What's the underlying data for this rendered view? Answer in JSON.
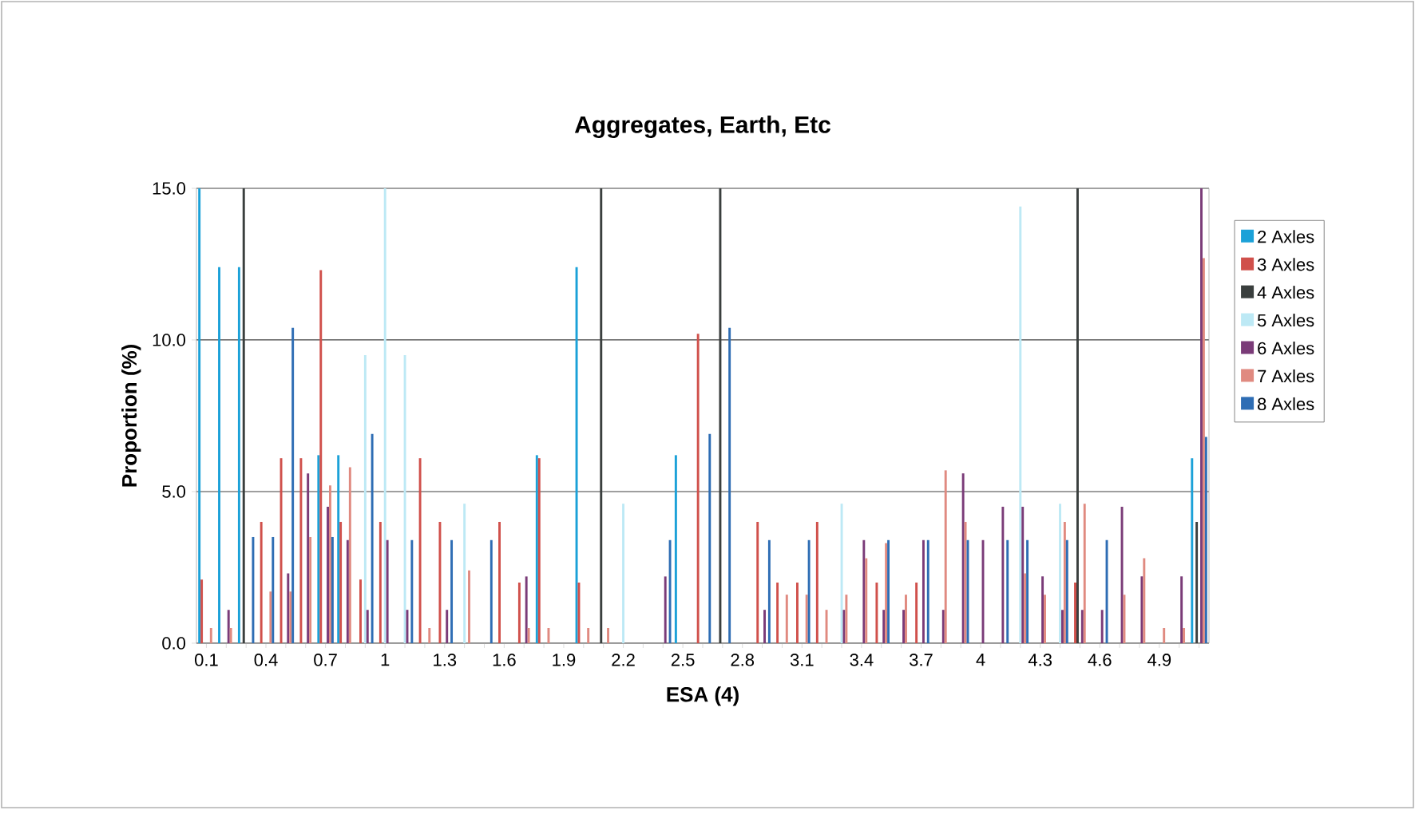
{
  "chart_data": {
    "type": "bar",
    "title": "Aggregates, Earth, Etc",
    "xlabel": "ESA (4)",
    "ylabel": "Proportion (%)",
    "categories": [
      "0.1",
      null,
      null,
      "0.4",
      null,
      null,
      "0.7",
      null,
      null,
      "1",
      null,
      null,
      "1.3",
      null,
      null,
      "1.6",
      null,
      null,
      "1.9",
      null,
      null,
      "2.2",
      null,
      null,
      "2.5",
      null,
      null,
      "2.8",
      null,
      null,
      "3.1",
      null,
      null,
      "3.4",
      null,
      null,
      "3.7",
      null,
      null,
      "4",
      null,
      null,
      "4.3",
      null,
      null,
      "4.6",
      null,
      null,
      "4.9",
      null,
      null
    ],
    "series": [
      {
        "name": "2 Axles",
        "color": "#1ba1d8",
        "values": [
          15,
          12.4,
          12.4,
          0,
          0,
          0,
          6.2,
          6.2,
          0,
          0,
          0,
          0,
          0,
          0,
          0,
          0,
          0,
          6.2,
          0,
          12.4,
          0,
          0,
          0,
          0,
          6.2,
          0,
          0,
          0,
          0,
          0,
          0,
          0,
          0,
          0,
          0,
          0,
          0,
          0,
          0,
          0,
          0,
          0,
          0,
          0,
          0,
          0,
          0,
          0,
          0,
          0,
          6.1
        ]
      },
      {
        "name": "3 Axles",
        "color": "#d0504b",
        "values": [
          2.1,
          0,
          0,
          4.0,
          6.1,
          6.1,
          12.3,
          4.0,
          2.1,
          4.0,
          0,
          6.1,
          4.0,
          0,
          0,
          4.0,
          2.0,
          6.1,
          0,
          2.0,
          0,
          0,
          0,
          0,
          0,
          10.2,
          0,
          0,
          4.0,
          2.0,
          2.0,
          4.0,
          0,
          0,
          2.0,
          0,
          2.0,
          0,
          0,
          0,
          0,
          0,
          0,
          0,
          2.0,
          0,
          0,
          0,
          0,
          0,
          0
        ]
      },
      {
        "name": "4 Axles",
        "color": "#3a3f3e",
        "values": [
          0,
          0,
          15,
          0,
          0,
          0,
          0,
          0,
          0,
          0,
          0,
          0,
          0,
          0,
          0,
          0,
          0,
          0,
          0,
          0,
          15,
          0,
          0,
          0,
          0,
          0,
          15,
          0,
          0,
          0,
          0,
          0,
          0,
          0,
          0,
          0,
          0,
          0,
          0,
          0,
          0,
          0,
          0,
          0,
          15,
          0,
          0,
          0,
          0,
          0,
          4.0
        ]
      },
      {
        "name": "5 Axles",
        "color": "#bde9f5",
        "values": [
          0,
          0,
          0,
          0,
          0,
          0,
          0,
          0,
          9.5,
          15,
          9.5,
          0,
          0,
          4.6,
          0,
          0,
          0,
          0,
          0,
          0,
          0,
          4.6,
          0,
          0,
          0,
          0,
          0,
          0,
          0,
          0,
          0,
          0,
          4.6,
          0,
          0,
          0,
          0,
          0,
          0,
          0,
          0,
          14.4,
          0,
          4.6,
          0,
          0,
          0,
          0,
          0,
          0,
          0
        ]
      },
      {
        "name": "6 Axles",
        "color": "#7a3b78",
        "values": [
          0,
          1.1,
          0,
          0,
          2.3,
          5.6,
          4.5,
          3.4,
          1.1,
          3.4,
          1.1,
          0,
          1.1,
          0,
          0,
          0,
          2.2,
          0,
          0,
          0,
          0,
          0,
          0,
          2.2,
          0,
          0,
          0,
          0,
          1.1,
          0,
          0,
          0,
          1.1,
          3.4,
          1.1,
          1.1,
          3.4,
          1.1,
          5.6,
          3.4,
          4.5,
          4.5,
          2.2,
          1.1,
          1.1,
          1.1,
          4.5,
          2.2,
          0,
          2.2,
          15
        ]
      },
      {
        "name": "7 Axles",
        "color": "#e08a80",
        "values": [
          0.5,
          0.5,
          0,
          1.7,
          1.7,
          3.5,
          5.2,
          5.8,
          0,
          0,
          0,
          0.5,
          0,
          2.4,
          0,
          0,
          0.5,
          0.5,
          0,
          0.5,
          0.5,
          0,
          0,
          0,
          0,
          0,
          0,
          0,
          0,
          1.6,
          1.6,
          1.1,
          1.6,
          2.8,
          3.3,
          1.6,
          0,
          5.7,
          4.0,
          0,
          0,
          2.3,
          1.6,
          4.0,
          4.6,
          0,
          1.6,
          2.8,
          0.5,
          0.5,
          12.7
        ]
      },
      {
        "name": "8 Axles",
        "color": "#2e6db4",
        "values": [
          0,
          0,
          3.5,
          3.5,
          10.4,
          0,
          3.5,
          0,
          6.9,
          0,
          3.4,
          0,
          3.4,
          0,
          3.4,
          0,
          0,
          0,
          0,
          0,
          0,
          0,
          0,
          3.4,
          0,
          6.9,
          10.4,
          0,
          3.4,
          0,
          3.4,
          0,
          0,
          0,
          3.4,
          0,
          3.4,
          0,
          3.4,
          0,
          3.4,
          3.4,
          0,
          3.4,
          0,
          3.4,
          0,
          0,
          0,
          0,
          6.8
        ]
      }
    ],
    "ylim": [
      0,
      15
    ],
    "yticks": [
      {
        "value": 0,
        "label": "0.0"
      },
      {
        "value": 5,
        "label": "5.0"
      },
      {
        "value": 10,
        "label": "10.0"
      },
      {
        "value": 15,
        "label": "15.0"
      }
    ],
    "grid": "y",
    "legend": "right"
  }
}
